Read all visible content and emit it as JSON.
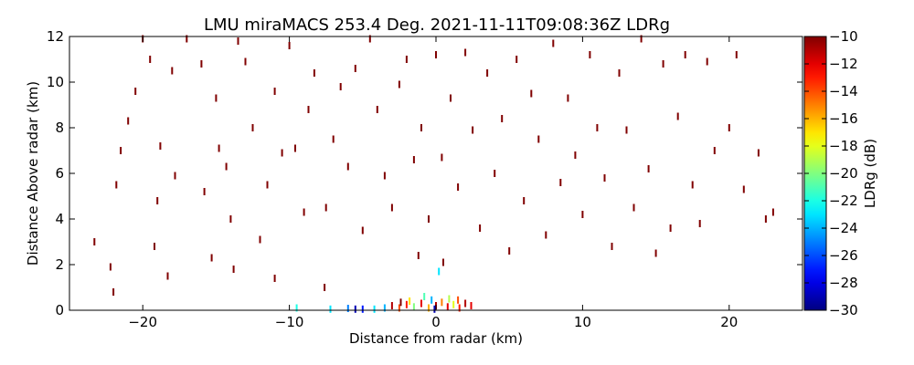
{
  "chart_data": {
    "type": "scatter",
    "title": "LMU miraMACS 253.4 Deg. 2021-11-11T09:08:36Z  LDRg",
    "xlabel": "Distance from radar (km)",
    "ylabel": "Distance Above radar  (km)",
    "xlim": [
      -25,
      25
    ],
    "ylim": [
      0,
      12
    ],
    "xticks": [
      -20,
      -10,
      0,
      10,
      20
    ],
    "xtick_labels": [
      "−20",
      "−10",
      "0",
      "10",
      "20"
    ],
    "yticks": [
      0,
      2,
      4,
      6,
      8,
      10,
      12
    ],
    "ytick_labels": [
      "0",
      "2",
      "4",
      "6",
      "8",
      "10",
      "12"
    ],
    "grid": false,
    "colorbar": {
      "label": "LDRg (dB)",
      "range": [
        -30,
        -10
      ],
      "ticks": [
        -10,
        -12,
        -14,
        -16,
        -18,
        -20,
        -22,
        -24,
        -26,
        -28,
        -30
      ],
      "tick_labels": [
        "−10",
        "−12",
        "−14",
        "−16",
        "−18",
        "−20",
        "−22",
        "−24",
        "−26",
        "−28",
        "−30"
      ],
      "colormap": "jet"
    },
    "series": [
      {
        "description": "sparse speckle returns (LDRg dB), x km, y km",
        "points": [
          [
            -23.3,
            3.0,
            -10
          ],
          [
            -22.2,
            1.9,
            -10
          ],
          [
            -22.0,
            0.8,
            -10
          ],
          [
            -21.8,
            5.5,
            -10
          ],
          [
            -21.5,
            7.0,
            -10
          ],
          [
            -21.0,
            8.3,
            -10
          ],
          [
            -20.5,
            9.6,
            -10
          ],
          [
            -20.0,
            11.9,
            -10
          ],
          [
            -19.5,
            11.0,
            -10
          ],
          [
            -19.2,
            2.8,
            -10
          ],
          [
            -19.0,
            4.8,
            -10
          ],
          [
            -18.8,
            7.2,
            -10
          ],
          [
            -18.3,
            1.5,
            -10
          ],
          [
            -18.0,
            10.5,
            -10
          ],
          [
            -17.8,
            5.9,
            -10
          ],
          [
            -17.0,
            11.9,
            -10
          ],
          [
            -16.0,
            10.8,
            -10
          ],
          [
            -15.8,
            5.2,
            -10
          ],
          [
            -15.3,
            2.3,
            -10
          ],
          [
            -15.0,
            9.3,
            -10
          ],
          [
            -14.8,
            7.1,
            -10
          ],
          [
            -14.3,
            6.3,
            -10
          ],
          [
            -14.0,
            4.0,
            -10
          ],
          [
            -13.8,
            1.8,
            -10
          ],
          [
            -13.5,
            11.8,
            -10
          ],
          [
            -13.0,
            10.9,
            -10
          ],
          [
            -12.5,
            8.0,
            -10
          ],
          [
            -12.0,
            3.1,
            -10
          ],
          [
            -11.5,
            5.5,
            -10
          ],
          [
            -11.0,
            9.6,
            -10
          ],
          [
            -11.0,
            1.4,
            -10
          ],
          [
            -10.5,
            6.9,
            -10
          ],
          [
            -10.0,
            11.6,
            -10
          ],
          [
            -9.6,
            7.1,
            -10
          ],
          [
            -9.0,
            4.3,
            -10
          ],
          [
            -8.7,
            8.8,
            -10
          ],
          [
            -8.3,
            10.4,
            -10
          ],
          [
            -7.6,
            1.0,
            -10
          ],
          [
            -7.5,
            4.5,
            -10
          ],
          [
            -7.0,
            7.5,
            -10
          ],
          [
            -6.5,
            9.8,
            -10
          ],
          [
            -6.0,
            6.3,
            -10
          ],
          [
            -5.5,
            10.6,
            -10
          ],
          [
            -5.0,
            3.5,
            -10
          ],
          [
            -4.5,
            11.9,
            -10
          ],
          [
            -4.0,
            8.8,
            -10
          ],
          [
            -3.5,
            5.9,
            -10
          ],
          [
            -3.0,
            4.5,
            -10
          ],
          [
            -2.5,
            9.9,
            -10
          ],
          [
            -2.0,
            11.0,
            -10
          ],
          [
            -1.5,
            6.6,
            -10
          ],
          [
            -1.2,
            2.4,
            -10
          ],
          [
            -1.0,
            8.0,
            -10
          ],
          [
            -0.5,
            4.0,
            -10
          ],
          [
            0.0,
            11.2,
            -10
          ],
          [
            0.4,
            6.7,
            -10
          ],
          [
            0.5,
            2.1,
            -10
          ],
          [
            1.0,
            9.3,
            -10
          ],
          [
            1.5,
            5.4,
            -10
          ],
          [
            2.0,
            11.3,
            -10
          ],
          [
            2.5,
            7.9,
            -10
          ],
          [
            3.0,
            3.6,
            -10
          ],
          [
            3.5,
            10.4,
            -10
          ],
          [
            4.0,
            6.0,
            -10
          ],
          [
            4.5,
            8.4,
            -10
          ],
          [
            5.0,
            2.6,
            -10
          ],
          [
            5.5,
            11.0,
            -10
          ],
          [
            6.0,
            4.8,
            -10
          ],
          [
            6.5,
            9.5,
            -10
          ],
          [
            7.0,
            7.5,
            -10
          ],
          [
            7.5,
            3.3,
            -10
          ],
          [
            8.0,
            11.7,
            -10
          ],
          [
            8.5,
            5.6,
            -10
          ],
          [
            9.0,
            9.3,
            -10
          ],
          [
            9.5,
            6.8,
            -10
          ],
          [
            10.0,
            4.2,
            -10
          ],
          [
            10.5,
            11.2,
            -10
          ],
          [
            11.0,
            8.0,
            -10
          ],
          [
            11.5,
            5.8,
            -10
          ],
          [
            12.0,
            2.8,
            -10
          ],
          [
            12.5,
            10.4,
            -10
          ],
          [
            13.0,
            7.9,
            -10
          ],
          [
            13.5,
            4.5,
            -10
          ],
          [
            14.0,
            11.9,
            -10
          ],
          [
            14.5,
            6.2,
            -10
          ],
          [
            15.0,
            2.5,
            -10
          ],
          [
            15.5,
            10.8,
            -10
          ],
          [
            16.0,
            3.6,
            -10
          ],
          [
            16.5,
            8.5,
            -10
          ],
          [
            17.0,
            11.2,
            -10
          ],
          [
            17.5,
            5.5,
            -10
          ],
          [
            18.0,
            3.8,
            -10
          ],
          [
            18.5,
            10.9,
            -10
          ],
          [
            19.0,
            7.0,
            -10
          ],
          [
            20.0,
            8.0,
            -10
          ],
          [
            20.5,
            11.2,
            -10
          ],
          [
            21.0,
            5.3,
            -10
          ],
          [
            22.0,
            6.9,
            -10
          ],
          [
            23.0,
            4.3,
            -10
          ],
          [
            22.5,
            4.0,
            -10
          ],
          [
            -3.0,
            0.2,
            -11
          ],
          [
            -2.5,
            0.1,
            -14
          ],
          [
            -2.0,
            0.25,
            -13
          ],
          [
            -1.5,
            0.15,
            -20
          ],
          [
            -1.0,
            0.3,
            -12
          ],
          [
            -0.5,
            0.1,
            -16
          ],
          [
            0.0,
            0.2,
            -11
          ],
          [
            0.4,
            0.35,
            -15
          ],
          [
            0.8,
            0.15,
            -12
          ],
          [
            1.2,
            0.25,
            -18
          ],
          [
            1.6,
            0.1,
            -13
          ],
          [
            2.0,
            0.3,
            -11
          ],
          [
            -3.5,
            0.1,
            -24
          ],
          [
            -4.2,
            0.05,
            -23
          ],
          [
            -5.0,
            0.05,
            -27
          ],
          [
            -6.0,
            0.08,
            -25
          ],
          [
            -7.2,
            0.05,
            -23
          ],
          [
            -9.5,
            0.1,
            -22
          ],
          [
            -0.3,
            0.45,
            -24
          ],
          [
            0.2,
            1.7,
            -23
          ],
          [
            -0.8,
            0.6,
            -21
          ],
          [
            0.9,
            0.5,
            -19
          ],
          [
            -1.8,
            0.4,
            -17
          ],
          [
            1.5,
            0.45,
            -14
          ],
          [
            -2.4,
            0.35,
            -10
          ],
          [
            2.4,
            0.2,
            -12
          ],
          [
            -0.1,
            0.05,
            -29
          ],
          [
            -5.5,
            0.05,
            -29
          ]
        ]
      }
    ]
  }
}
